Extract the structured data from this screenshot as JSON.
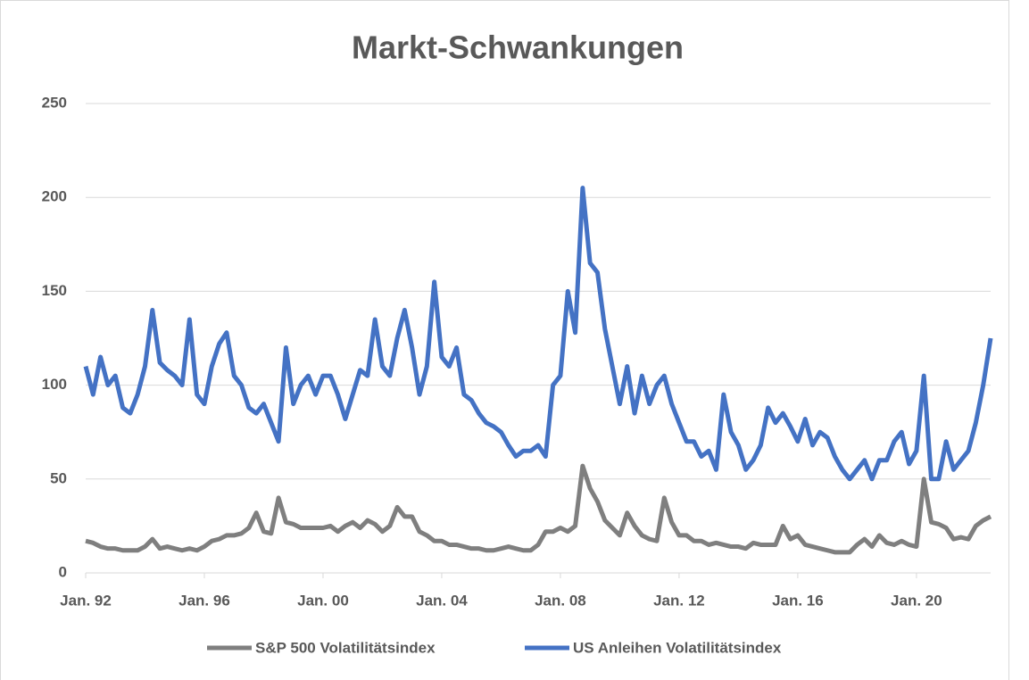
{
  "chart_data": {
    "type": "line",
    "title": "Markt-Schwankungen",
    "x": [
      "1992-01",
      "1992-04",
      "1992-07",
      "1992-10",
      "1993-01",
      "1993-04",
      "1993-07",
      "1993-10",
      "1994-01",
      "1994-04",
      "1994-07",
      "1994-10",
      "1995-01",
      "1995-04",
      "1995-07",
      "1995-10",
      "1996-01",
      "1996-04",
      "1996-07",
      "1996-10",
      "1997-01",
      "1997-04",
      "1997-07",
      "1997-10",
      "1998-01",
      "1998-04",
      "1998-07",
      "1998-10",
      "1999-01",
      "1999-04",
      "1999-07",
      "1999-10",
      "2000-01",
      "2000-04",
      "2000-07",
      "2000-10",
      "2001-01",
      "2001-04",
      "2001-07",
      "2001-10",
      "2002-01",
      "2002-04",
      "2002-07",
      "2002-10",
      "2003-01",
      "2003-04",
      "2003-07",
      "2003-10",
      "2004-01",
      "2004-04",
      "2004-07",
      "2004-10",
      "2005-01",
      "2005-04",
      "2005-07",
      "2005-10",
      "2006-01",
      "2006-04",
      "2006-07",
      "2006-10",
      "2007-01",
      "2007-04",
      "2007-07",
      "2007-10",
      "2008-01",
      "2008-04",
      "2008-07",
      "2008-10",
      "2009-01",
      "2009-04",
      "2009-07",
      "2009-10",
      "2010-01",
      "2010-04",
      "2010-07",
      "2010-10",
      "2011-01",
      "2011-04",
      "2011-07",
      "2011-10",
      "2012-01",
      "2012-04",
      "2012-07",
      "2012-10",
      "2013-01",
      "2013-04",
      "2013-07",
      "2013-10",
      "2014-01",
      "2014-04",
      "2014-07",
      "2014-10",
      "2015-01",
      "2015-04",
      "2015-07",
      "2015-10",
      "2016-01",
      "2016-04",
      "2016-07",
      "2016-10",
      "2017-01",
      "2017-04",
      "2017-07",
      "2017-10",
      "2018-01",
      "2018-04",
      "2018-07",
      "2018-10",
      "2019-01",
      "2019-04",
      "2019-07",
      "2019-10",
      "2020-01",
      "2020-04",
      "2020-07",
      "2020-10",
      "2021-01",
      "2021-04",
      "2021-07",
      "2021-10",
      "2022-01",
      "2022-04",
      "2022-07"
    ],
    "series": [
      {
        "name": "S&P 500 Volatilitätsindex",
        "color": "#7f7f7f",
        "values": [
          17,
          16,
          14,
          13,
          13,
          12,
          12,
          12,
          14,
          18,
          13,
          14,
          13,
          12,
          13,
          12,
          14,
          17,
          18,
          20,
          20,
          21,
          24,
          32,
          22,
          21,
          40,
          27,
          26,
          24,
          24,
          24,
          24,
          25,
          22,
          25,
          27,
          24,
          28,
          26,
          22,
          25,
          35,
          30,
          30,
          22,
          20,
          17,
          17,
          15,
          15,
          14,
          13,
          13,
          12,
          12,
          13,
          14,
          13,
          12,
          12,
          15,
          22,
          22,
          24,
          22,
          25,
          57,
          45,
          38,
          28,
          24,
          20,
          32,
          25,
          20,
          18,
          17,
          40,
          27,
          20,
          20,
          17,
          17,
          15,
          16,
          15,
          14,
          14,
          13,
          16,
          15,
          15,
          15,
          25,
          18,
          20,
          15,
          14,
          13,
          12,
          11,
          11,
          11,
          15,
          18,
          14,
          20,
          16,
          15,
          17,
          15,
          14,
          50,
          27,
          26,
          24,
          18,
          19,
          18,
          25,
          28,
          30
        ]
      },
      {
        "name": "US Anleihen Volatilitätsindex",
        "color": "#4472c4",
        "values": [
          110,
          95,
          115,
          100,
          105,
          88,
          85,
          95,
          110,
          140,
          112,
          108,
          105,
          100,
          135,
          95,
          90,
          110,
          122,
          128,
          105,
          100,
          88,
          85,
          90,
          80,
          70,
          120,
          90,
          100,
          105,
          95,
          105,
          105,
          95,
          82,
          95,
          108,
          105,
          135,
          110,
          105,
          125,
          140,
          120,
          95,
          110,
          155,
          115,
          110,
          120,
          95,
          92,
          85,
          80,
          78,
          75,
          68,
          62,
          65,
          65,
          68,
          62,
          100,
          105,
          150,
          128,
          205,
          165,
          160,
          130,
          110,
          90,
          110,
          85,
          105,
          90,
          100,
          105,
          90,
          80,
          70,
          70,
          62,
          65,
          55,
          95,
          75,
          68,
          55,
          60,
          68,
          88,
          80,
          85,
          78,
          70,
          82,
          68,
          75,
          72,
          62,
          55,
          50,
          55,
          60,
          50,
          60,
          60,
          70,
          75,
          58,
          65,
          105,
          50,
          50,
          70,
          55,
          60,
          65,
          80,
          100,
          125
        ]
      }
    ],
    "xlim": [
      "1992-01",
      "2022-07"
    ],
    "xticks": [
      {
        "value": "1992-01",
        "label": "Jan. 92"
      },
      {
        "value": "1996-01",
        "label": "Jan. 96"
      },
      {
        "value": "2000-01",
        "label": "Jan. 00"
      },
      {
        "value": "2004-01",
        "label": "Jan. 04"
      },
      {
        "value": "2008-01",
        "label": "Jan. 08"
      },
      {
        "value": "2012-01",
        "label": "Jan. 12"
      },
      {
        "value": "2016-01",
        "label": "Jan. 16"
      },
      {
        "value": "2020-01",
        "label": "Jan. 20"
      }
    ],
    "ylim": [
      0,
      250
    ],
    "yticks": [
      0,
      50,
      100,
      150,
      200,
      250
    ],
    "grid": true,
    "legend": "bottom"
  }
}
